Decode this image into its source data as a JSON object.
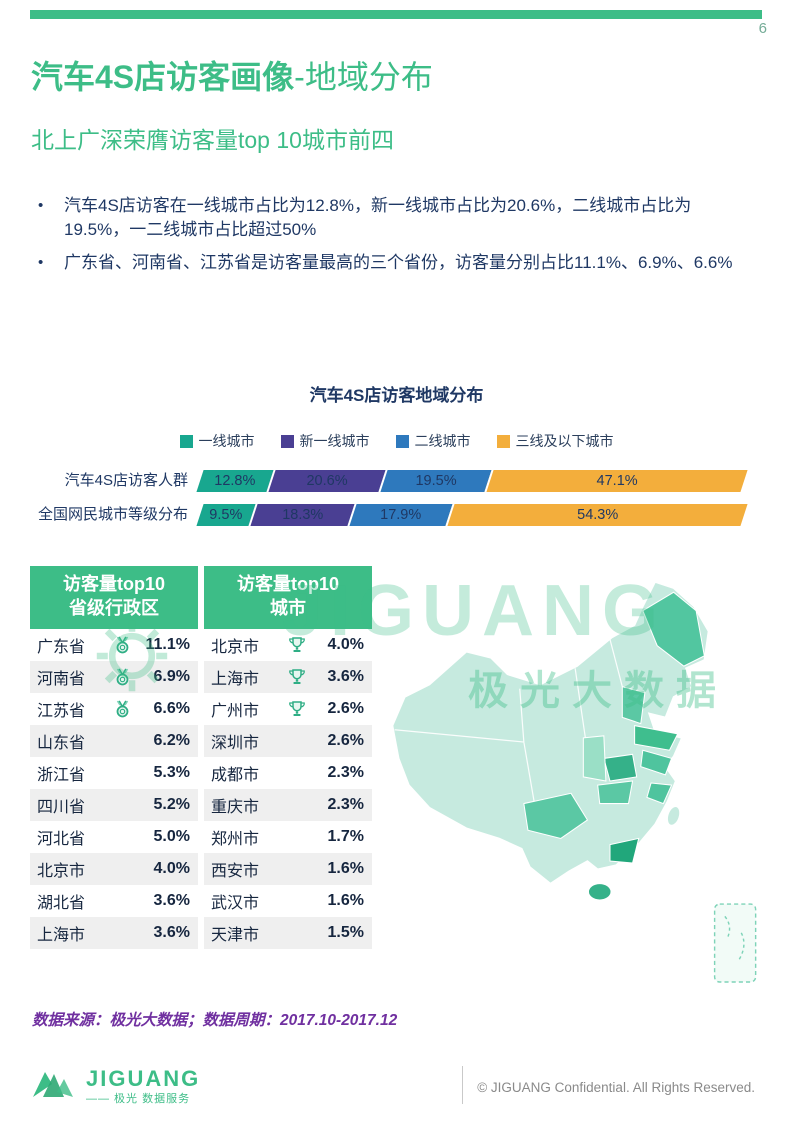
{
  "page": {
    "number": "6"
  },
  "header": {
    "title_bold": "汽车4S店访客画像",
    "title_light": "-地域分布",
    "subtitle": "北上广深荣膺访客量top 10城市前四"
  },
  "bullets": [
    "汽车4S店访客在一线城市占比为12.8%，新一线城市占比为20.6%，二线城市占比为19.5%，一二线城市占比超过50%",
    "广东省、河南省、江苏省是访客量最高的三个省份，访客量分别占比11.1%、6.9%、6.6%"
  ],
  "chart_data": {
    "type": "bar",
    "orientation": "horizontal-stacked",
    "title": "汽车4S店访客地域分布",
    "legend": [
      "一线城市",
      "新一线城市",
      "二线城市",
      "三线及以下城市"
    ],
    "colors": [
      "#18A78F",
      "#4A3F93",
      "#2E79BD",
      "#F3AE3C"
    ],
    "categories": [
      "汽车4S店访客人群",
      "全国网民城市等级分布"
    ],
    "series": [
      {
        "name": "一线城市",
        "values": [
          12.8,
          9.5
        ]
      },
      {
        "name": "新一线城市",
        "values": [
          20.6,
          18.3
        ]
      },
      {
        "name": "二线城市",
        "values": [
          19.5,
          17.9
        ]
      },
      {
        "name": "三线及以下城市",
        "values": [
          47.1,
          54.3
        ]
      }
    ],
    "xlim": [
      0,
      100
    ],
    "value_suffix": "%"
  },
  "tables": {
    "provinces": {
      "header_line1": "访客量top10",
      "header_line2": "省级行政区",
      "rows": [
        {
          "name": "广东省",
          "value": "11.1%",
          "medal": true
        },
        {
          "name": "河南省",
          "value": "6.9%",
          "medal": true
        },
        {
          "name": "江苏省",
          "value": "6.6%",
          "medal": true
        },
        {
          "name": "山东省",
          "value": "6.2%"
        },
        {
          "name": "浙江省",
          "value": "5.3%"
        },
        {
          "name": "四川省",
          "value": "5.2%"
        },
        {
          "name": "河北省",
          "value": "5.0%"
        },
        {
          "name": "北京市",
          "value": "4.0%"
        },
        {
          "name": "湖北省",
          "value": "3.6%"
        },
        {
          "name": "上海市",
          "value": "3.6%"
        }
      ]
    },
    "cities": {
      "header_line1": "访客量top10",
      "header_line2": "城市",
      "rows": [
        {
          "name": "北京市",
          "value": "4.0%",
          "trophy": true
        },
        {
          "name": "上海市",
          "value": "3.6%",
          "trophy": true
        },
        {
          "name": "广州市",
          "value": "2.6%",
          "trophy": true
        },
        {
          "name": "深圳市",
          "value": "2.6%"
        },
        {
          "name": "成都市",
          "value": "2.3%"
        },
        {
          "name": "重庆市",
          "value": "2.3%"
        },
        {
          "name": "郑州市",
          "value": "1.7%"
        },
        {
          "name": "西安市",
          "value": "1.6%"
        },
        {
          "name": "武汉市",
          "value": "1.6%"
        },
        {
          "name": "天津市",
          "value": "1.5%"
        }
      ]
    }
  },
  "watermark": {
    "text": "JIGUANG",
    "subtext": "极光大数据"
  },
  "footnote": "数据来源：极光大数据；数据周期：2017.10-2017.12",
  "footer": {
    "logo_text": "JIGUANG",
    "logo_subtext": "—— 极光 数据服务",
    "copyright": "© JIGUANG Confidential. All Rights Reserved."
  },
  "colors": {
    "brand_green": "#3DBD87",
    "heading_navy": "#1F3864",
    "footnote_purple": "#7030A0"
  }
}
